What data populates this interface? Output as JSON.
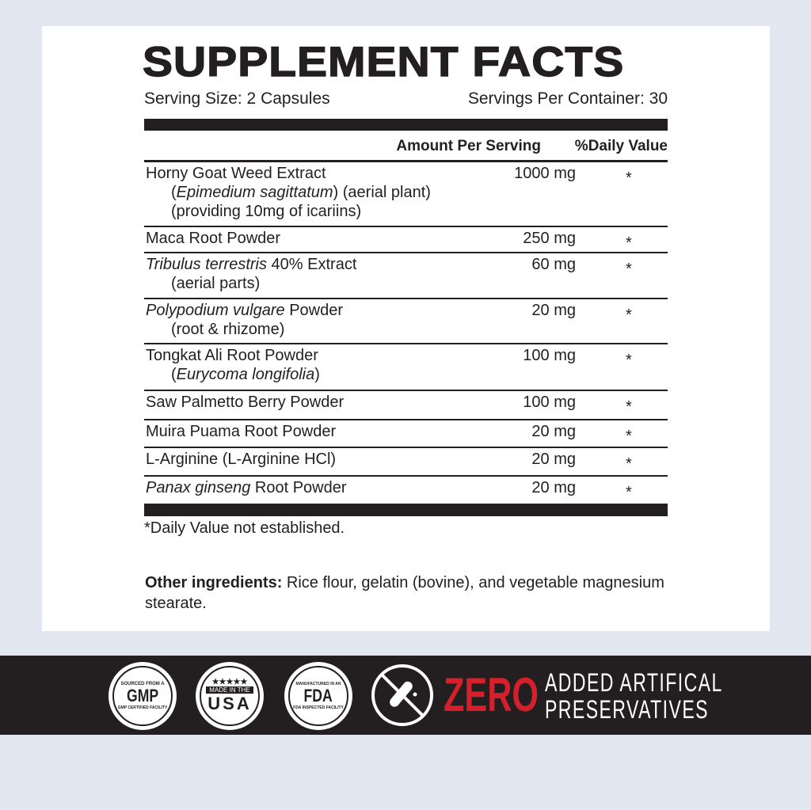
{
  "title": "SUPPLEMENT FACTS",
  "serving_size": "Serving Size: 2 Capsules",
  "servings_per_container": "Servings Per Container: 30",
  "header": {
    "amount": "Amount Per Serving",
    "daily_value": "%Daily Value"
  },
  "rows": [
    {
      "lines": [
        [
          {
            "t": "Horny Goat Weed Extract"
          }
        ],
        [
          {
            "t": "("
          },
          {
            "t": "Epimedium sagittatum",
            "i": true
          },
          {
            "t": ") (aerial plant)"
          }
        ],
        [
          {
            "t": "(providing 10mg of icariins)"
          }
        ]
      ],
      "amount": "1000 mg",
      "dv": "*"
    },
    {
      "lines": [
        [
          {
            "t": "Maca Root Powder"
          }
        ]
      ],
      "amount": "250 mg",
      "dv": "*"
    },
    {
      "lines": [
        [
          {
            "t": "Tribulus terrestris",
            "i": true
          },
          {
            "t": " 40% Extract"
          }
        ],
        [
          {
            "t": "(aerial parts)"
          }
        ]
      ],
      "amount": "60 mg",
      "dv": "*"
    },
    {
      "lines": [
        [
          {
            "t": "Polypodium vulgare",
            "i": true
          },
          {
            "t": " Powder"
          }
        ],
        [
          {
            "t": "(root & rhizome)"
          }
        ]
      ],
      "amount": "20 mg",
      "dv": "*"
    },
    {
      "lines": [
        [
          {
            "t": "Tongkat Ali Root Powder"
          }
        ],
        [
          {
            "t": "("
          },
          {
            "t": "Eurycoma longifolia",
            "i": true
          },
          {
            "t": ")"
          }
        ]
      ],
      "amount": "100 mg",
      "dv": "*"
    },
    {
      "lines": [
        [
          {
            "t": "Saw Palmetto Berry Powder"
          }
        ]
      ],
      "amount": "100 mg",
      "dv": "*"
    },
    {
      "lines": [
        [
          {
            "t": "Muira Puama Root Powder"
          }
        ]
      ],
      "amount": "20 mg",
      "dv": "*"
    },
    {
      "lines": [
        [
          {
            "t": "L-Arginine (L-Arginine HCl)"
          }
        ]
      ],
      "amount": "20 mg",
      "dv": "*"
    },
    {
      "lines": [
        [
          {
            "t": "Panax ginseng",
            "i": true
          },
          {
            "t": " Root Powder"
          }
        ]
      ],
      "amount": "20 mg",
      "dv": "*"
    }
  ],
  "footnote": "*Daily Value not established.",
  "other": {
    "label": "Other ingredients:",
    "text": " Rice flour, gelatin (bovine), and vegetable magnesium stearate."
  },
  "badges": {
    "gmp": {
      "top": "SOURCED FROM A",
      "main": "GMP",
      "bottom": "GMP CERTIFIED FACILITY"
    },
    "usa": {
      "stars": "★★★★★",
      "top": "MADE IN THE",
      "main": "USA"
    },
    "fda": {
      "top": "MANUFACTURED IN AN",
      "main": "FDA",
      "bottom": "FDA INSPECTED FACILITY"
    },
    "no_preservatives_icon": "crossed-test-tube-icon"
  },
  "zero": "ZERO",
  "added_line1": "ADDED ARTIFICAL",
  "added_line2": "PRESERVATIVES",
  "colors": {
    "background": "#e3e7f1",
    "text": "#231f20",
    "accent": "#d3202a"
  }
}
